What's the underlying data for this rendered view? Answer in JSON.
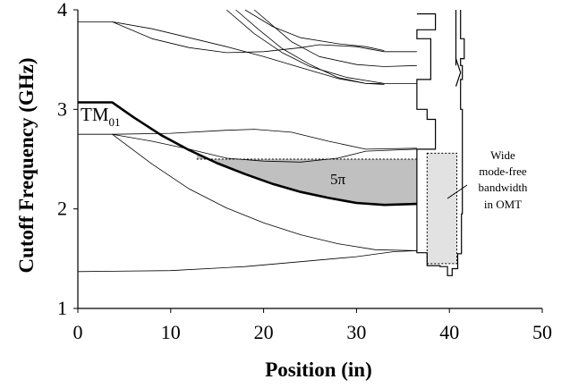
{
  "chart_data": {
    "type": "line",
    "xlabel": "Position (in)",
    "ylabel": "Cutoff Frequency (GHz)",
    "xlim": [
      0,
      50
    ],
    "ylim": [
      1,
      4
    ],
    "x_ticks": [
      0,
      10,
      20,
      30,
      40,
      50
    ],
    "y_ticks": [
      1,
      2,
      3,
      4
    ],
    "grid": false,
    "series": [
      {
        "name": "TM01",
        "emphasis": true,
        "points": [
          [
            0,
            3.07
          ],
          [
            3.7,
            3.07
          ],
          [
            6,
            2.92
          ],
          [
            9,
            2.74
          ],
          [
            12,
            2.59
          ],
          [
            15,
            2.46
          ],
          [
            18,
            2.35
          ],
          [
            21,
            2.25
          ],
          [
            24,
            2.17
          ],
          [
            27,
            2.11
          ],
          [
            30,
            2.06
          ],
          [
            33,
            2.04
          ],
          [
            36.5,
            2.05
          ]
        ]
      },
      {
        "points": [
          [
            0,
            2.75
          ],
          [
            3.7,
            2.75
          ],
          [
            10,
            2.76
          ],
          [
            16,
            2.79
          ],
          [
            19,
            2.8
          ],
          [
            23,
            2.77
          ],
          [
            27,
            2.68
          ],
          [
            31,
            2.6
          ],
          [
            36.5,
            2.61
          ]
        ]
      },
      {
        "points": [
          [
            3.7,
            2.75
          ],
          [
            8,
            2.68
          ],
          [
            12,
            2.6
          ],
          [
            16,
            2.51
          ],
          [
            20,
            2.48
          ],
          [
            24,
            2.47
          ],
          [
            28,
            2.51
          ],
          [
            31,
            2.58
          ],
          [
            36.5,
            2.6
          ]
        ]
      },
      {
        "points": [
          [
            3.7,
            2.75
          ],
          [
            8,
            2.45
          ],
          [
            12,
            2.2
          ],
          [
            16,
            2.01
          ],
          [
            20,
            1.86
          ],
          [
            24,
            1.74
          ],
          [
            28,
            1.65
          ],
          [
            32,
            1.59
          ],
          [
            36.5,
            1.58
          ]
        ]
      },
      {
        "points": [
          [
            0,
            1.37
          ],
          [
            10,
            1.38
          ],
          [
            18,
            1.42
          ],
          [
            24,
            1.47
          ],
          [
            30,
            1.52
          ],
          [
            34,
            1.57
          ],
          [
            36.5,
            1.58
          ]
        ]
      },
      {
        "points": [
          [
            0,
            3.88
          ],
          [
            3.7,
            3.88
          ],
          [
            8,
            3.71
          ],
          [
            12,
            3.62
          ],
          [
            16,
            3.57
          ],
          [
            20,
            3.58
          ],
          [
            24,
            3.62
          ],
          [
            26,
            3.65
          ],
          [
            30,
            3.63
          ],
          [
            33,
            3.58
          ],
          [
            36.5,
            3.58
          ]
        ]
      },
      {
        "points": [
          [
            3.7,
            3.88
          ],
          [
            8,
            3.81
          ],
          [
            12,
            3.72
          ],
          [
            16,
            3.63
          ],
          [
            20,
            3.53
          ],
          [
            24,
            3.42
          ],
          [
            28,
            3.31
          ],
          [
            31,
            3.26
          ],
          [
            36.5,
            3.26
          ]
        ]
      },
      {
        "points": [
          [
            17,
            4.0
          ],
          [
            19.5,
            3.8
          ],
          [
            22,
            3.61
          ],
          [
            25,
            3.45
          ],
          [
            28,
            3.32
          ],
          [
            31,
            3.26
          ],
          [
            33,
            3.25
          ]
        ]
      },
      {
        "points": [
          [
            19,
            4.0
          ],
          [
            21,
            3.84
          ],
          [
            23,
            3.68
          ],
          [
            26,
            3.53
          ],
          [
            30,
            3.45
          ],
          [
            33,
            3.43
          ],
          [
            36.5,
            3.44
          ]
        ]
      },
      {
        "points": [
          [
            16,
            4.0
          ],
          [
            19,
            3.76
          ],
          [
            22,
            3.57
          ],
          [
            25,
            3.43
          ],
          [
            29,
            3.32
          ],
          [
            33,
            3.26
          ]
        ]
      },
      {
        "points": [
          [
            18,
            4.0
          ],
          [
            21,
            3.83
          ],
          [
            24,
            3.72
          ],
          [
            28,
            3.66
          ],
          [
            31,
            3.63
          ],
          [
            33,
            3.59
          ]
        ]
      }
    ],
    "omt_outline": [
      [
        36.5,
        3.96
      ],
      [
        38.5,
        3.96
      ],
      [
        38.5,
        3.8
      ],
      [
        36.5,
        3.8
      ],
      [
        36.5,
        3.71
      ],
      [
        38.0,
        3.71
      ],
      [
        38.0,
        3.3
      ],
      [
        36.5,
        3.3
      ],
      [
        36.5,
        3.0
      ],
      [
        37.6,
        3.0
      ],
      [
        37.6,
        2.9
      ],
      [
        38.5,
        2.9
      ],
      [
        38.5,
        2.6
      ],
      [
        36.5,
        2.6
      ],
      [
        36.5,
        1.56
      ],
      [
        37.6,
        1.56
      ],
      [
        37.6,
        1.43
      ],
      [
        39.0,
        1.43
      ],
      [
        39.0,
        1.42
      ],
      [
        39.8,
        1.42
      ],
      [
        39.8,
        1.33
      ],
      [
        40.3,
        1.33
      ],
      [
        40.3,
        1.4
      ],
      [
        40.9,
        1.4
      ],
      [
        40.9,
        1.55
      ],
      [
        41.3,
        1.55
      ],
      [
        41.3,
        1.95
      ],
      [
        41.4,
        1.95
      ],
      [
        41.4,
        3.0
      ],
      [
        41.2,
        3.0
      ],
      [
        41.2,
        3.3
      ],
      [
        41.4,
        3.3
      ],
      [
        41.4,
        3.44
      ],
      [
        41.2,
        3.44
      ],
      [
        41.2,
        3.51
      ],
      [
        41.6,
        3.51
      ],
      [
        41.6,
        3.71
      ],
      [
        41.2,
        3.71
      ],
      [
        41.2,
        4.0
      ]
    ],
    "omt_wall": [
      [
        40.7,
        4.0
      ],
      [
        40.7,
        3.44
      ]
    ],
    "omt_tip": [
      [
        40.7,
        3.51
      ],
      [
        41.2,
        3.37
      ],
      [
        40.7,
        3.23
      ]
    ],
    "shaded_region": {
      "upper": 2.5,
      "x_start": 12.8,
      "x_end": 36.5,
      "fill": "#c0c0c0"
    },
    "omt_box": {
      "x0": 37.6,
      "x1": 40.8,
      "y0": 1.45,
      "y1": 2.56,
      "fill": "#e2e2e2"
    },
    "annotations": {
      "tm01_label": "TM",
      "tm01_sub": "01",
      "region_label": "5π",
      "omt_note": [
        "Wide",
        "mode-free",
        "bandwidth",
        "in OMT"
      ]
    }
  }
}
